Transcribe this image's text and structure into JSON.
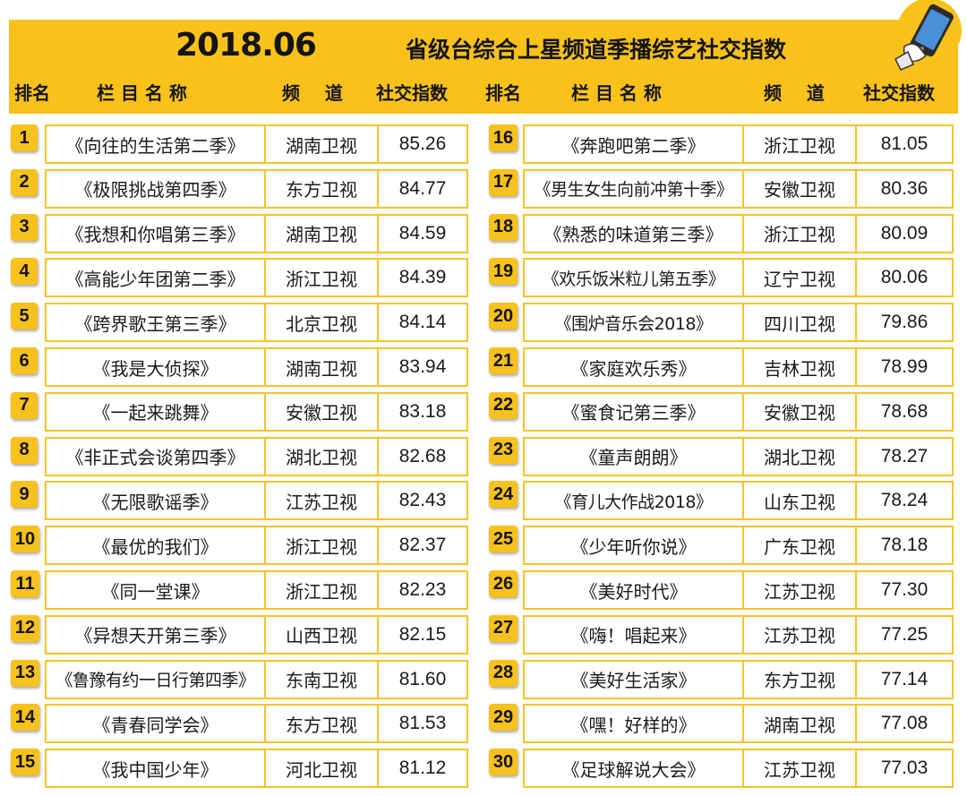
{
  "header": {
    "date": "2018.06",
    "title": "省级台综合上星频道季播综艺社交指数",
    "columns": {
      "rank": "排名",
      "program": "栏 目 名 称",
      "channel": "频    道",
      "score": "社交指数"
    }
  },
  "icons": {
    "phone": "phone-hand-icon"
  },
  "colors": {
    "accent": "#f9c21b",
    "border": "#f6c329",
    "text": "#1a1a1a"
  },
  "left_rows": [
    {
      "rank": "1",
      "program": "《向往的生活第二季》",
      "channel": "湖南卫视",
      "score": "85.26"
    },
    {
      "rank": "2",
      "program": "《极限挑战第四季》",
      "channel": "东方卫视",
      "score": "84.77"
    },
    {
      "rank": "3",
      "program": "《我想和你唱第三季》",
      "channel": "湖南卫视",
      "score": "84.59"
    },
    {
      "rank": "4",
      "program": "《高能少年团第二季》",
      "channel": "浙江卫视",
      "score": "84.39"
    },
    {
      "rank": "5",
      "program": "《跨界歌王第三季》",
      "channel": "北京卫视",
      "score": "84.14"
    },
    {
      "rank": "6",
      "program": "《我是大侦探》",
      "channel": "湖南卫视",
      "score": "83.94"
    },
    {
      "rank": "7",
      "program": "《一起来跳舞》",
      "channel": "安徽卫视",
      "score": "83.18"
    },
    {
      "rank": "8",
      "program": "《非正式会谈第四季》",
      "channel": "湖北卫视",
      "score": "82.68"
    },
    {
      "rank": "9",
      "program": "《无限歌谣季》",
      "channel": "江苏卫视",
      "score": "82.43"
    },
    {
      "rank": "10",
      "program": "《最优的我们》",
      "channel": "浙江卫视",
      "score": "82.37"
    },
    {
      "rank": "11",
      "program": "《同一堂课》",
      "channel": "浙江卫视",
      "score": "82.23"
    },
    {
      "rank": "12",
      "program": "《异想天开第三季》",
      "channel": "山西卫视",
      "score": "82.15"
    },
    {
      "rank": "13",
      "program": "《鲁豫有约一日行第四季》",
      "channel": "东南卫视",
      "score": "81.60"
    },
    {
      "rank": "14",
      "program": "《青春同学会》",
      "channel": "东方卫视",
      "score": "81.53"
    },
    {
      "rank": "15",
      "program": "《我中国少年》",
      "channel": "河北卫视",
      "score": "81.12"
    }
  ],
  "right_rows": [
    {
      "rank": "16",
      "program": "《奔跑吧第二季》",
      "channel": "浙江卫视",
      "score": "81.05"
    },
    {
      "rank": "17",
      "program": "《男生女生向前冲第十季》",
      "channel": "安徽卫视",
      "score": "80.36"
    },
    {
      "rank": "18",
      "program": "《熟悉的味道第三季》",
      "channel": "浙江卫视",
      "score": "80.09"
    },
    {
      "rank": "19",
      "program": "《欢乐饭米粒儿第五季》",
      "channel": "辽宁卫视",
      "score": "80.06"
    },
    {
      "rank": "20",
      "program": "《围炉音乐会2018》",
      "channel": "四川卫视",
      "score": "79.86"
    },
    {
      "rank": "21",
      "program": "《家庭欢乐秀》",
      "channel": "吉林卫视",
      "score": "78.99"
    },
    {
      "rank": "22",
      "program": "《蜜食记第三季》",
      "channel": "安徽卫视",
      "score": "78.68"
    },
    {
      "rank": "23",
      "program": "《童声朗朗》",
      "channel": "湖北卫视",
      "score": "78.27"
    },
    {
      "rank": "24",
      "program": "《育儿大作战2018》",
      "channel": "山东卫视",
      "score": "78.24"
    },
    {
      "rank": "25",
      "program": "《少年听你说》",
      "channel": "广东卫视",
      "score": "78.18"
    },
    {
      "rank": "26",
      "program": "《美好时代》",
      "channel": "江苏卫视",
      "score": "77.30"
    },
    {
      "rank": "27",
      "program": "《嗨！唱起来》",
      "channel": "江苏卫视",
      "score": "77.25"
    },
    {
      "rank": "28",
      "program": "《美好生活家》",
      "channel": "东方卫视",
      "score": "77.14"
    },
    {
      "rank": "29",
      "program": "《嘿！好样的》",
      "channel": "湖南卫视",
      "score": "77.08"
    },
    {
      "rank": "30",
      "program": "《足球解说大会》",
      "channel": "江苏卫视",
      "score": "77.03"
    }
  ]
}
